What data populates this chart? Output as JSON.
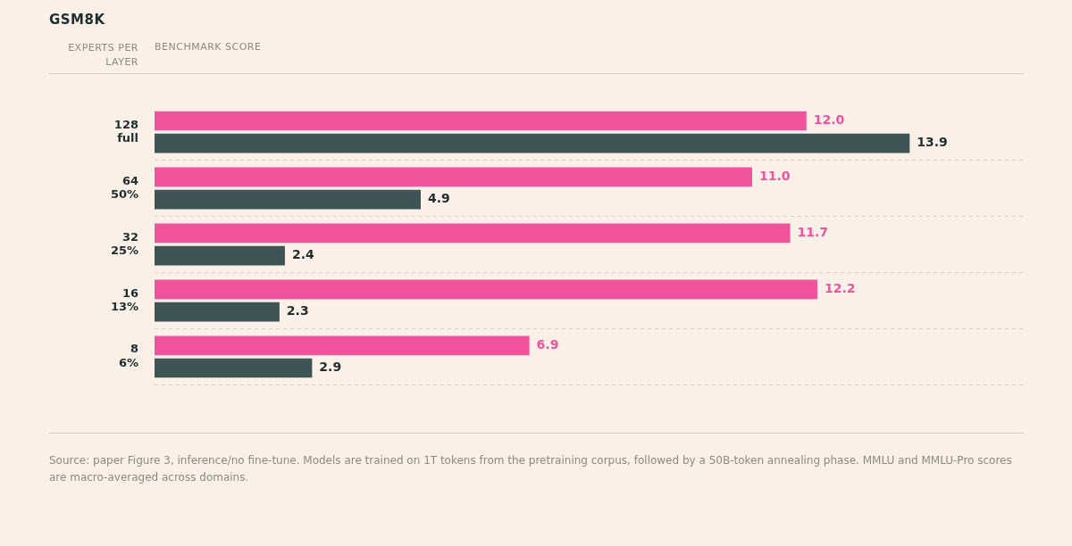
{
  "chart_data": {
    "type": "bar",
    "orientation": "horizontal",
    "title": "GSM8K",
    "ylabel": "EXPERTS PER LAYER",
    "categories": [
      "128\nfull",
      "64\n50%",
      "32\n25%",
      "16\n13%",
      "8\n6%"
    ],
    "series": [
      {
        "color": "#f0529c",
        "values": [
          12.0,
          11.0,
          11.7,
          12.2,
          6.9
        ],
        "value_labels": [
          "12.0",
          "11.0",
          "11.7",
          "12.2",
          "6.9"
        ]
      },
      {
        "color": "#3f5454",
        "values": [
          13.9,
          4.9,
          2.4,
          2.3,
          2.9
        ],
        "value_labels": [
          "13.9",
          "4.9",
          "2.4",
          "2.3",
          "2.9"
        ]
      }
    ],
    "tick_labels": "y",
    "grid": "y",
    "legend": false,
    "annotations": [
      "BENCHMARK SCORE",
      "Source: paper Figure 3, inference/no fine-tune. Models are trained on 1T tokens from the pretraining corpus, followed by a 50B-token annealing phase. MMLU and MMLU-Pro scores are macro-averaged across domains."
    ]
  }
}
